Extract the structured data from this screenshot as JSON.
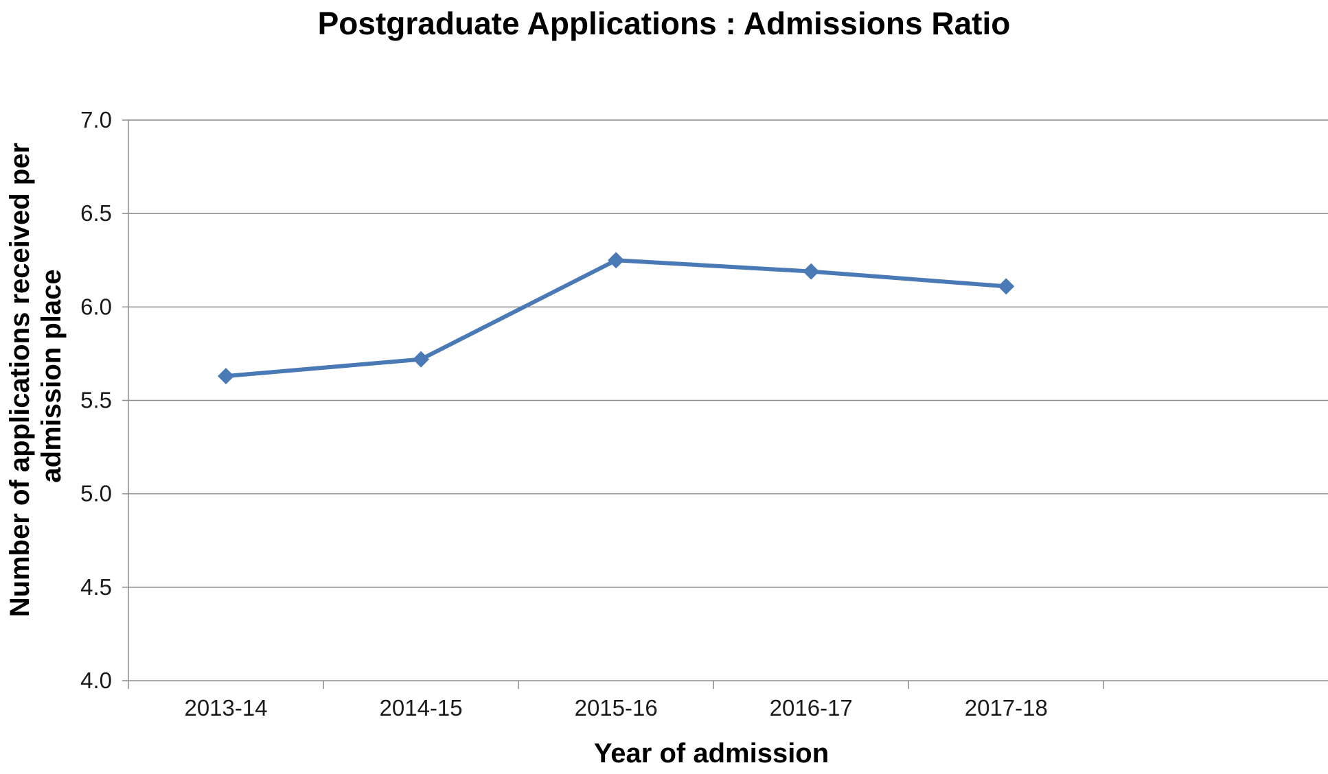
{
  "chart_data": {
    "type": "line",
    "title": "Postgraduate Applications : Admissions Ratio",
    "xlabel": "Year of admission",
    "ylabel_lines": [
      "Number of applications received per",
      "admission place"
    ],
    "categories": [
      "2013-14",
      "2014-15",
      "2015-16",
      "2016-17",
      "2017-18"
    ],
    "series": [
      {
        "values": [
          5.63,
          5.72,
          6.25,
          6.19,
          6.11
        ],
        "color": "#4a7ab5",
        "marker": "diamond"
      }
    ],
    "ylim": [
      4.0,
      7.0
    ],
    "yticks": [
      "4.0",
      "4.5",
      "5.0",
      "5.5",
      "6.0",
      "6.5",
      "7.0"
    ],
    "grid": true,
    "legend": "none"
  }
}
